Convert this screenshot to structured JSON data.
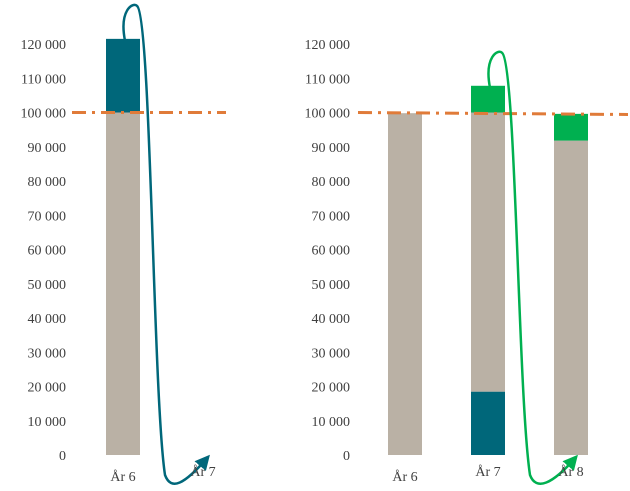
{
  "colors": {
    "base": "#bab1a5",
    "teal": "#00677a",
    "green": "#00b050",
    "threshold": "#e07b39",
    "text": "#404040"
  },
  "chart_data": [
    {
      "type": "bar",
      "stacked": true,
      "categories": [
        "År 6",
        "År 7"
      ],
      "ylim": [
        0,
        120000
      ],
      "ytick_labels": [
        "0",
        "10 000",
        "20 000",
        "30 000",
        "40 000",
        "50 000",
        "60 000",
        "70 000",
        "80 000",
        "90 000",
        "100 000",
        "110 000",
        "120 000"
      ],
      "threshold": 100000,
      "series": [
        {
          "key": "base",
          "color": "#bab1a5",
          "values": [
            100000,
            0
          ]
        },
        {
          "key": "excess",
          "color": "#00677a",
          "values": [
            21500,
            0
          ]
        }
      ],
      "arrow": {
        "from_category": "År 6",
        "to_category": "År 7",
        "color": "#00677a"
      },
      "grid": false,
      "legend": "none"
    },
    {
      "type": "bar",
      "stacked": true,
      "categories": [
        "År 6",
        "År 7",
        "År 8"
      ],
      "ylim": [
        0,
        120000
      ],
      "ytick_labels": [
        "0",
        "10 000",
        "20 000",
        "30 000",
        "40 000",
        "50 000",
        "60 000",
        "70 000",
        "80 000",
        "90 000",
        "100 000",
        "110 000",
        "120 000"
      ],
      "threshold": 100000,
      "series": [
        {
          "key": "carried_in",
          "color": "#00677a",
          "values": [
            0,
            18500,
            0
          ]
        },
        {
          "key": "base",
          "color": "#bab1a5",
          "values": [
            99800,
            81500,
            91800
          ]
        },
        {
          "key": "excess",
          "color": "#00b050",
          "values": [
            0,
            7800,
            0
          ]
        },
        {
          "key": "carried_in_green",
          "color": "#00b050",
          "values": [
            0,
            0,
            7800
          ]
        }
      ],
      "arrow": {
        "from_category": "År 7",
        "to_category": "År 8",
        "color": "#00b050"
      },
      "grid": false,
      "legend": "none"
    }
  ]
}
